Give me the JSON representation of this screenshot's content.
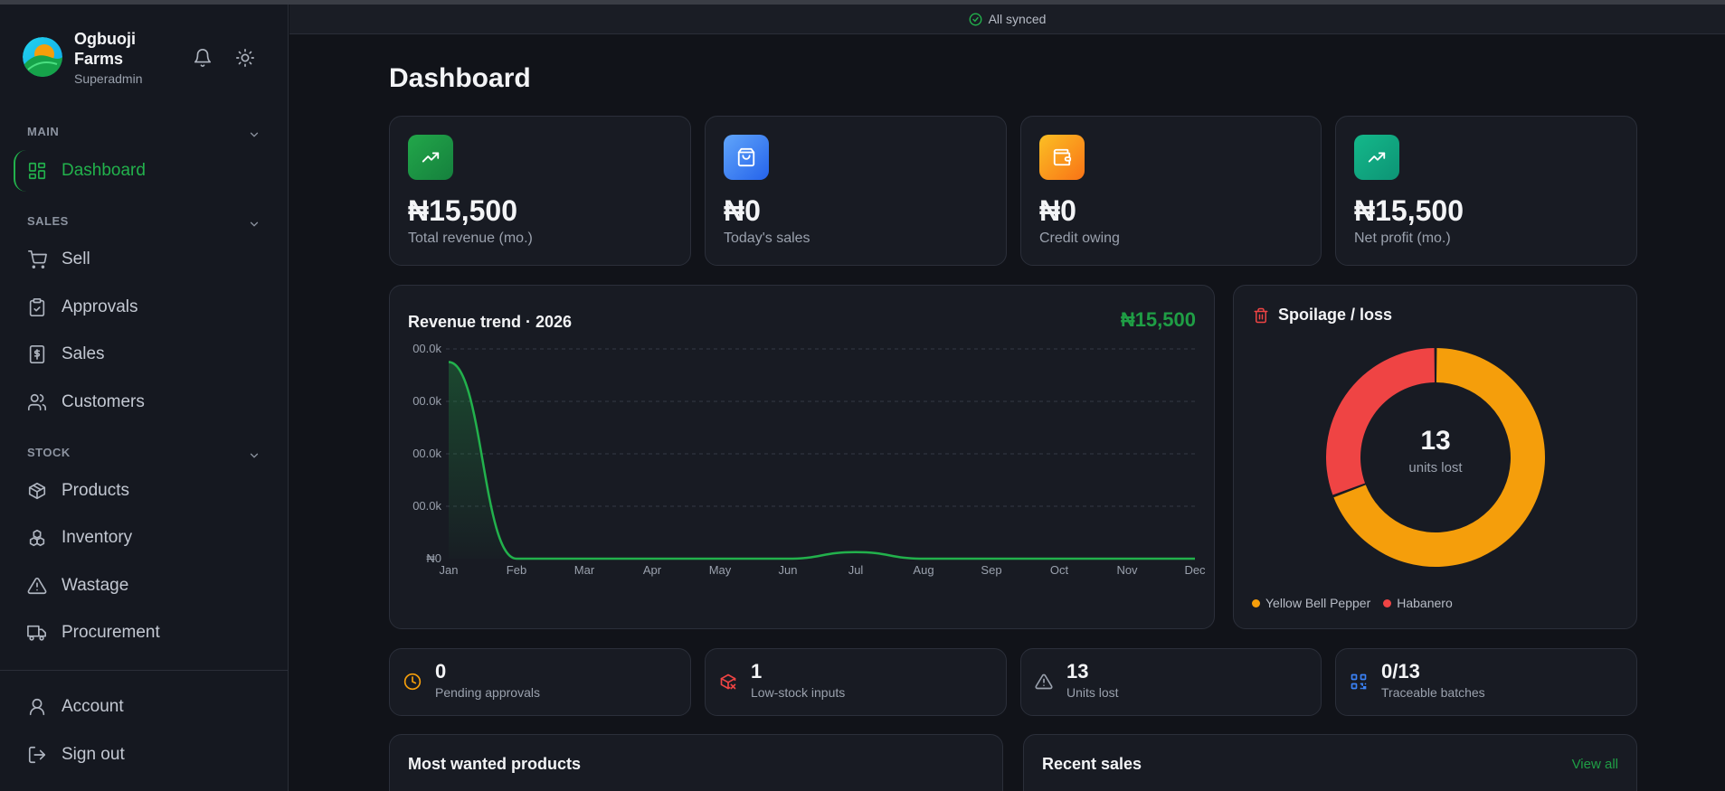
{
  "app": {
    "name": "Ogbuoji Farms",
    "role": "Superadmin"
  },
  "sync": {
    "status": "All synced"
  },
  "sidebar": {
    "sections": [
      {
        "label": "MAIN"
      },
      {
        "label": "SALES"
      },
      {
        "label": "STOCK"
      }
    ],
    "items": [
      {
        "label": "Dashboard",
        "icon": "grid-icon",
        "active": true
      },
      {
        "label": "Sell",
        "icon": "cart-icon"
      },
      {
        "label": "Approvals",
        "icon": "clipboard-check-icon"
      },
      {
        "label": "Sales",
        "icon": "receipt-dollar-icon"
      },
      {
        "label": "Customers",
        "icon": "users-icon"
      },
      {
        "label": "Products",
        "icon": "box-icon"
      },
      {
        "label": "Inventory",
        "icon": "boxes-icon"
      },
      {
        "label": "Wastage",
        "icon": "warning-icon"
      },
      {
        "label": "Procurement",
        "icon": "truck-icon"
      }
    ],
    "footer": [
      {
        "label": "Account",
        "icon": "user-icon"
      },
      {
        "label": "Sign out",
        "icon": "logout-icon"
      }
    ]
  },
  "page": {
    "title": "Dashboard"
  },
  "stats": [
    {
      "value": "₦15,500",
      "label": "Total revenue (mo.)",
      "icon": "trending-up-icon",
      "color": "#16a34a"
    },
    {
      "value": "₦0",
      "label": "Today's sales",
      "icon": "shopping-bag-icon",
      "color": "#3b82f6"
    },
    {
      "value": "₦0",
      "label": "Credit owing",
      "icon": "wallet-icon",
      "color": "#f59e0b"
    },
    {
      "value": "₦15,500",
      "label": "Net profit (mo.)",
      "icon": "trending-up-icon",
      "color": "#10b981"
    }
  ],
  "revenue_chart": {
    "title": "Revenue trend · 2026",
    "total": "₦15,500"
  },
  "spoilage": {
    "title": "Spoilage / loss",
    "center_value": "13",
    "center_label": "units lost"
  },
  "mini_stats": [
    {
      "value": "0",
      "label": "Pending approvals",
      "icon": "clock-icon",
      "color": "#f59e0b"
    },
    {
      "value": "1",
      "label": "Low-stock inputs",
      "icon": "package-x-icon",
      "color": "#ef4444"
    },
    {
      "value": "13",
      "label": "Units lost",
      "icon": "warning-icon",
      "color": "#9aa1ad"
    },
    {
      "value": "0/13",
      "label": "Traceable batches",
      "icon": "qr-code-icon",
      "color": "#3b82f6"
    }
  ],
  "panels": {
    "most_wanted_title": "Most wanted products",
    "recent_sales_title": "Recent sales",
    "view_all": "View all"
  },
  "chart_data": [
    {
      "type": "area",
      "title": "Revenue trend · 2026",
      "categories": [
        "Jan",
        "Feb",
        "Mar",
        "Apr",
        "May",
        "Jun",
        "Jul",
        "Aug",
        "Sep",
        "Oct",
        "Nov",
        "Dec"
      ],
      "values": [
        15000,
        0,
        0,
        0,
        0,
        0,
        500,
        0,
        0,
        0,
        0,
        0
      ],
      "y_tick_labels": [
        "₦0",
        "00.0k",
        "00.0k",
        "00.0k",
        "00.0k"
      ],
      "ylim": [
        0,
        16000
      ],
      "grid": true,
      "color": "#22b14c"
    },
    {
      "type": "pie",
      "title": "Spoilage / loss",
      "categories": [
        "Yellow Bell Pepper",
        "Habanero"
      ],
      "values": [
        9,
        4
      ],
      "colors": [
        "#f59e0b",
        "#ef4444"
      ],
      "legend": "bottom"
    }
  ]
}
